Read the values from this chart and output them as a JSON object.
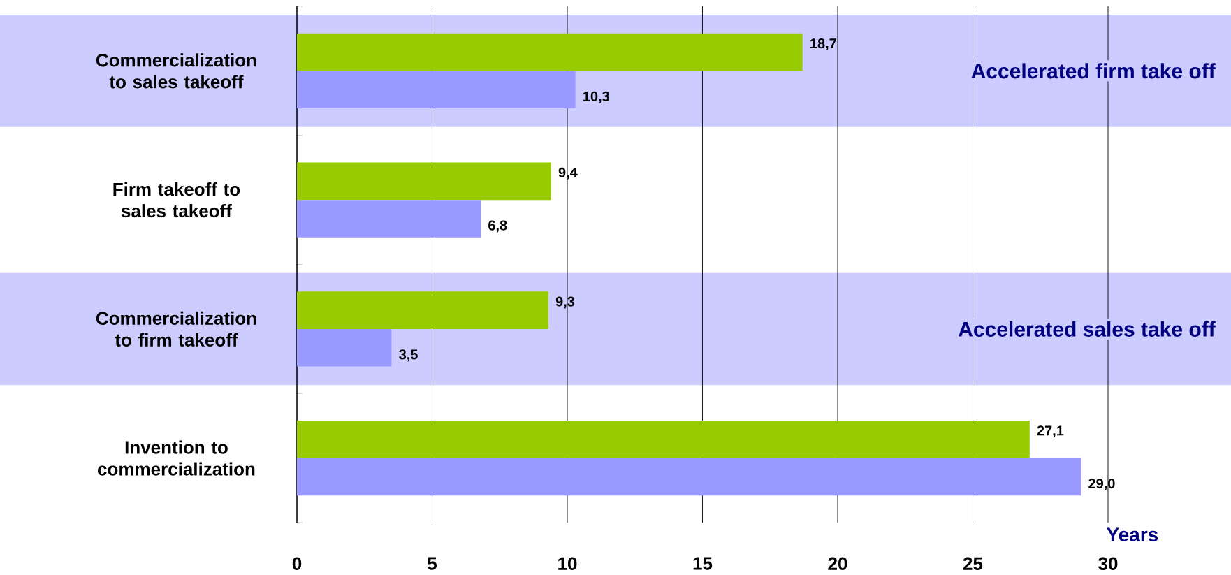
{
  "chart_data": {
    "type": "bar",
    "orientation": "horizontal",
    "categories": [
      "Commercialization to sales takeoff",
      "Firm takeoff to sales takeoff",
      "Commercialization to firm takeoff",
      "Invention to commercialization"
    ],
    "series": [
      {
        "color": "#99cc00",
        "values": [
          18.7,
          9.4,
          9.3,
          27.1
        ],
        "value_labels": [
          "18,7",
          "9,4",
          "9,3",
          "27,1"
        ]
      },
      {
        "color": "#9999ff",
        "values": [
          10.3,
          6.8,
          3.5,
          29.0
        ],
        "value_labels": [
          "10,3",
          "6,8",
          "3,5",
          "29,0"
        ]
      }
    ],
    "xlim": [
      0,
      30
    ],
    "xticks": [
      0,
      5,
      10,
      15,
      20,
      25,
      30
    ],
    "xlabel": "Years",
    "grid": "x",
    "bands": [
      {
        "axis": "y",
        "from": "Commercialization to sales takeoff",
        "to": "Commercialization to sales takeoff",
        "label": "Accelerated firm take off",
        "color": "#ccccff"
      },
      {
        "axis": "y",
        "from": "Commercialization to firm takeoff",
        "to": "Commercialization to firm takeoff",
        "label": "Accelerated sales take off",
        "color": "#ccccff"
      }
    ]
  }
}
